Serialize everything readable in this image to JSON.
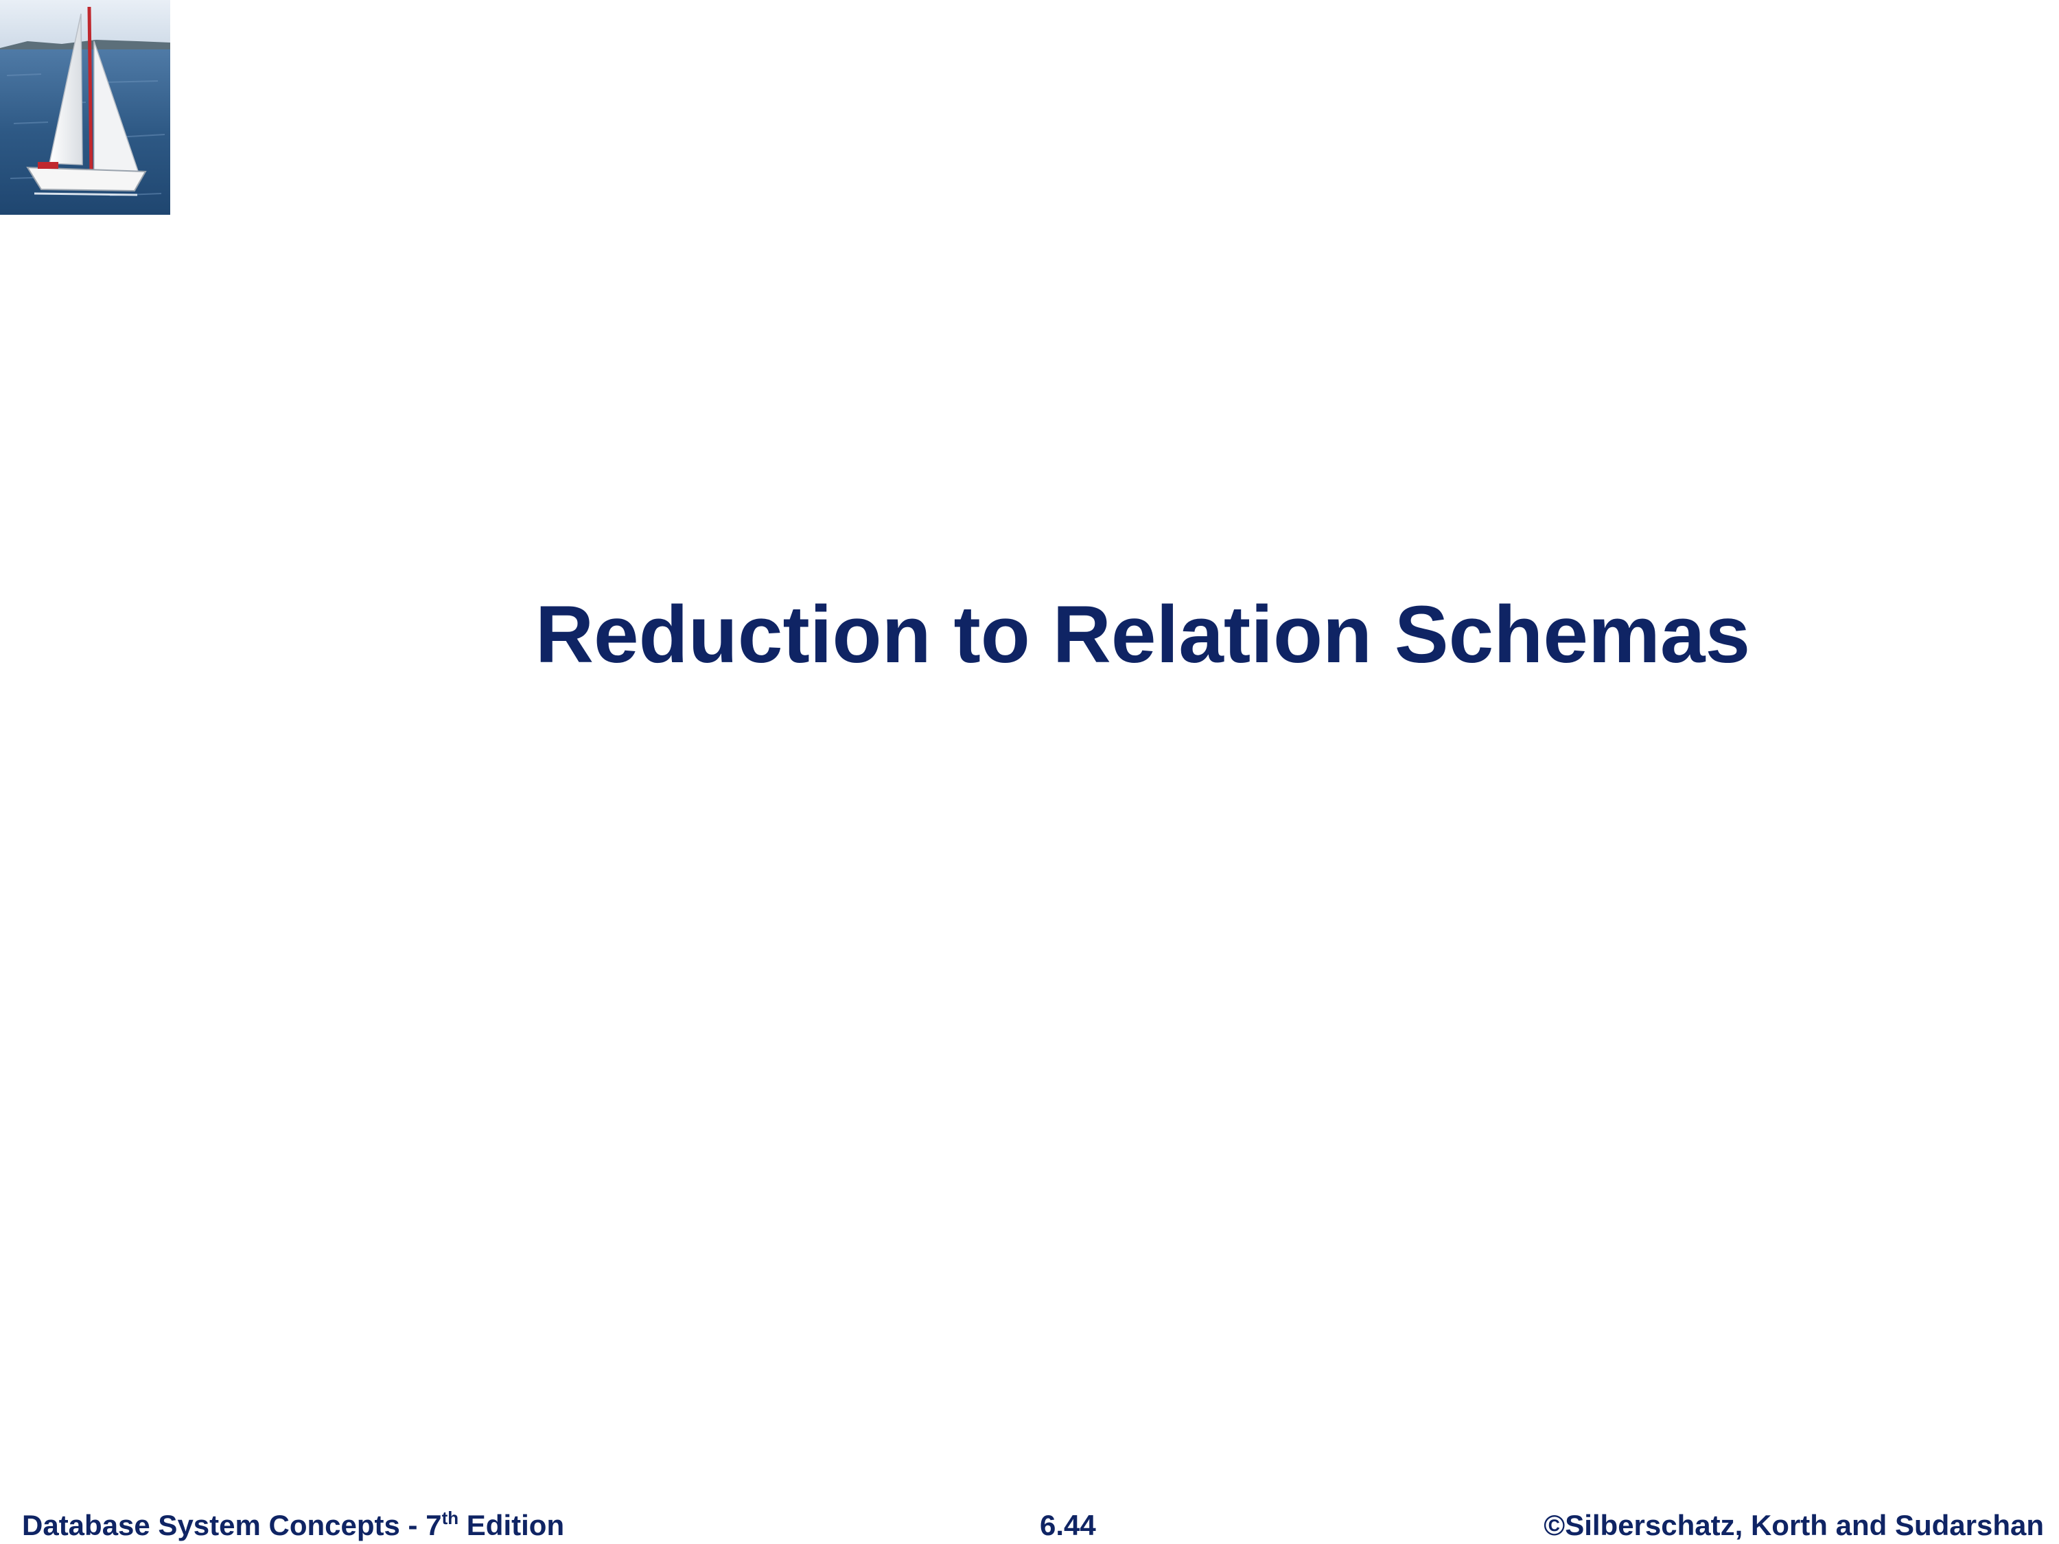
{
  "slide": {
    "title": "Reduction to Relation Schemas"
  },
  "footer": {
    "book_prefix": "Database System Concepts - 7",
    "book_superscript": "th",
    "book_suffix": " Edition",
    "page_number": "6.44",
    "copyright": "©Silberschatz, Korth and Sudarshan"
  },
  "logo": {
    "icon": "sailboat-logo",
    "colors": {
      "sky": "#dfe8f2",
      "sea": "#2a5683",
      "sail": "#f4f4f2",
      "mast_accent": "#c0282e"
    }
  },
  "colors": {
    "text": "#0f2464",
    "background": "#ffffff"
  }
}
